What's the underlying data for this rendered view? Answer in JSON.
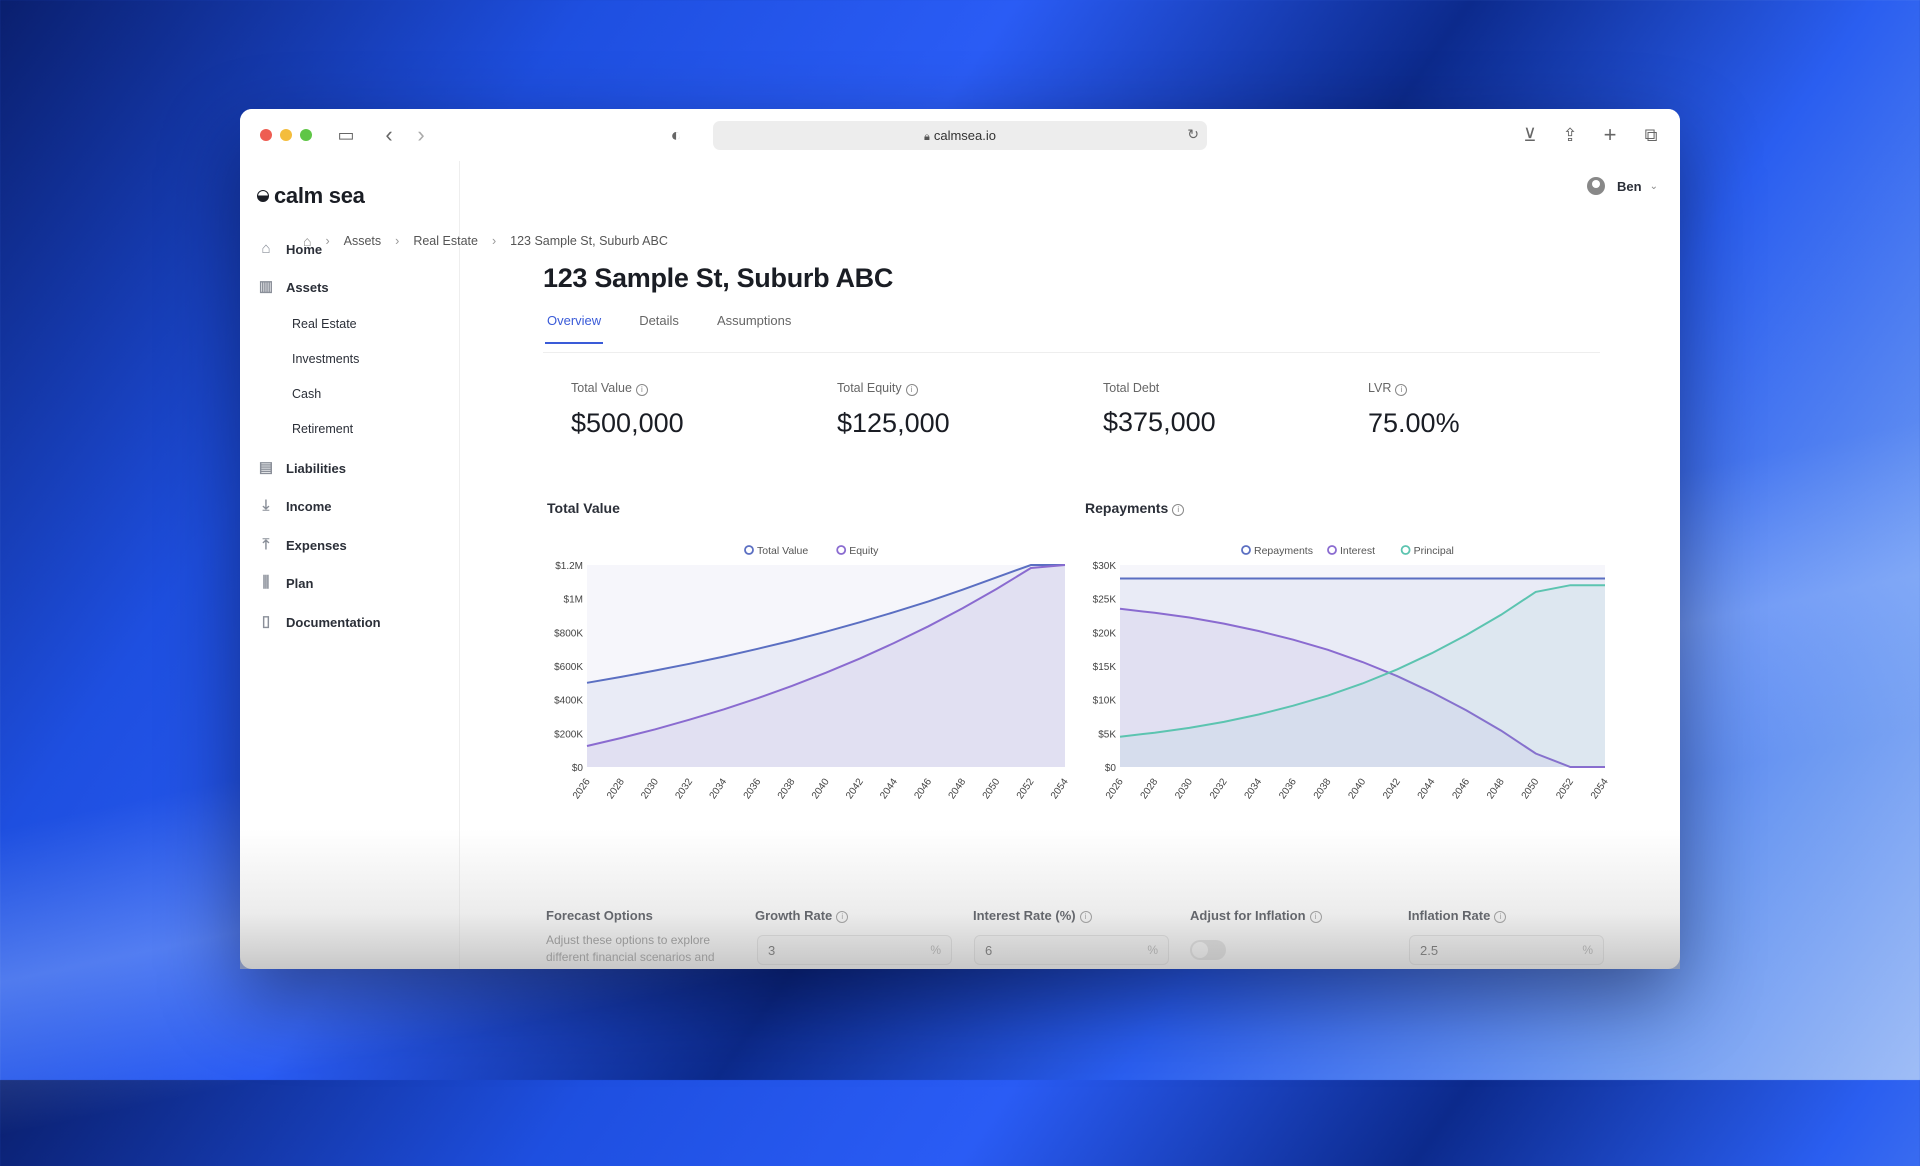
{
  "browser": {
    "url": "calmsea.io"
  },
  "app": {
    "logo": "calm sea",
    "user": "Ben"
  },
  "sidebar": {
    "items": [
      {
        "label": "Home",
        "icon": "home-icon"
      },
      {
        "label": "Assets",
        "icon": "bar-chart-icon"
      },
      {
        "label": "Liabilities",
        "icon": "document-dollar-icon"
      },
      {
        "label": "Income",
        "icon": "download-icon"
      },
      {
        "label": "Expenses",
        "icon": "upload-icon"
      },
      {
        "label": "Plan",
        "icon": "sliders-icon"
      },
      {
        "label": "Documentation",
        "icon": "file-icon"
      }
    ],
    "asset_subitems": [
      "Real Estate",
      "Investments",
      "Cash",
      "Retirement"
    ]
  },
  "breadcrumb": [
    "Assets",
    "Real Estate",
    "123 Sample St, Suburb ABC"
  ],
  "page": {
    "title": "123 Sample St, Suburb ABC"
  },
  "tabs": [
    "Overview",
    "Details",
    "Assumptions"
  ],
  "stats": [
    {
      "label": "Total Value",
      "value": "$500,000",
      "info": true
    },
    {
      "label": "Total Equity",
      "value": "$125,000",
      "info": true
    },
    {
      "label": "Total Debt",
      "value": "$375,000",
      "info": false
    },
    {
      "label": "LVR",
      "value": "75.00%",
      "info": true
    }
  ],
  "chart_data": [
    {
      "type": "area",
      "title": "Total Value",
      "x": [
        "2026",
        "2028",
        "2030",
        "2032",
        "2034",
        "2036",
        "2038",
        "2040",
        "2042",
        "2044",
        "2046",
        "2048",
        "2050",
        "2052",
        "2054"
      ],
      "series": [
        {
          "name": "Total Value",
          "color": "#5b6fc2",
          "values": [
            500000,
            535000,
            573000,
            613000,
            656000,
            702000,
            751000,
            804000,
            860000,
            920000,
            984000,
            1053000,
            1127000,
            1206000,
            1290000
          ]
        },
        {
          "name": "Equity",
          "color": "#8a6bd0",
          "values": [
            125000,
            172000,
            224000,
            281000,
            342000,
            409000,
            482000,
            560000,
            645000,
            737000,
            836000,
            943000,
            1058000,
            1182000,
            1290000
          ]
        }
      ],
      "ylim": [
        0,
        1200000
      ],
      "yticks": [
        "$0",
        "$200K",
        "$400K",
        "$600K",
        "$800K",
        "$1M",
        "$1.2M"
      ],
      "legend": "top-center"
    },
    {
      "type": "area",
      "title": "Repayments",
      "x": [
        "2026",
        "2028",
        "2030",
        "2032",
        "2034",
        "2036",
        "2038",
        "2040",
        "2042",
        "2044",
        "2046",
        "2048",
        "2050",
        "2052",
        "2054"
      ],
      "series": [
        {
          "name": "Repayments",
          "color": "#5b6fc2",
          "values": [
            28000,
            28000,
            28000,
            28000,
            28000,
            28000,
            28000,
            28000,
            28000,
            28000,
            28000,
            28000,
            28000,
            28000,
            28000
          ]
        },
        {
          "name": "Interest",
          "color": "#8a6bd0",
          "values": [
            23500,
            22900,
            22200,
            21300,
            20200,
            18900,
            17400,
            15600,
            13500,
            11100,
            8400,
            5400,
            2000,
            0,
            0
          ]
        },
        {
          "name": "Principal",
          "color": "#5cc4b0",
          "values": [
            4500,
            5100,
            5800,
            6700,
            7800,
            9100,
            10600,
            12400,
            14500,
            16900,
            19600,
            22600,
            26000,
            27000,
            27000
          ]
        }
      ],
      "ylim": [
        0,
        30000
      ],
      "yticks": [
        "$0",
        "$5K",
        "$10K",
        "$15K",
        "$20K",
        "$25K",
        "$30K"
      ],
      "legend": "top-center"
    }
  ],
  "forecast": {
    "title": "Forecast Options",
    "description": "Adjust these options to explore different financial scenarios and",
    "fields": [
      {
        "label": "Growth Rate",
        "value": "3",
        "unit": "%"
      },
      {
        "label": "Interest Rate (%)",
        "value": "6",
        "unit": "%"
      },
      {
        "label": "Adjust for Inflation",
        "toggle": false
      },
      {
        "label": "Inflation Rate",
        "value": "2.5",
        "unit": "%"
      }
    ]
  },
  "colors": {
    "accent": "#3a5bd8",
    "total_value": "#5b6fc2",
    "equity": "#8a6bd0",
    "principal": "#5cc4b0"
  }
}
